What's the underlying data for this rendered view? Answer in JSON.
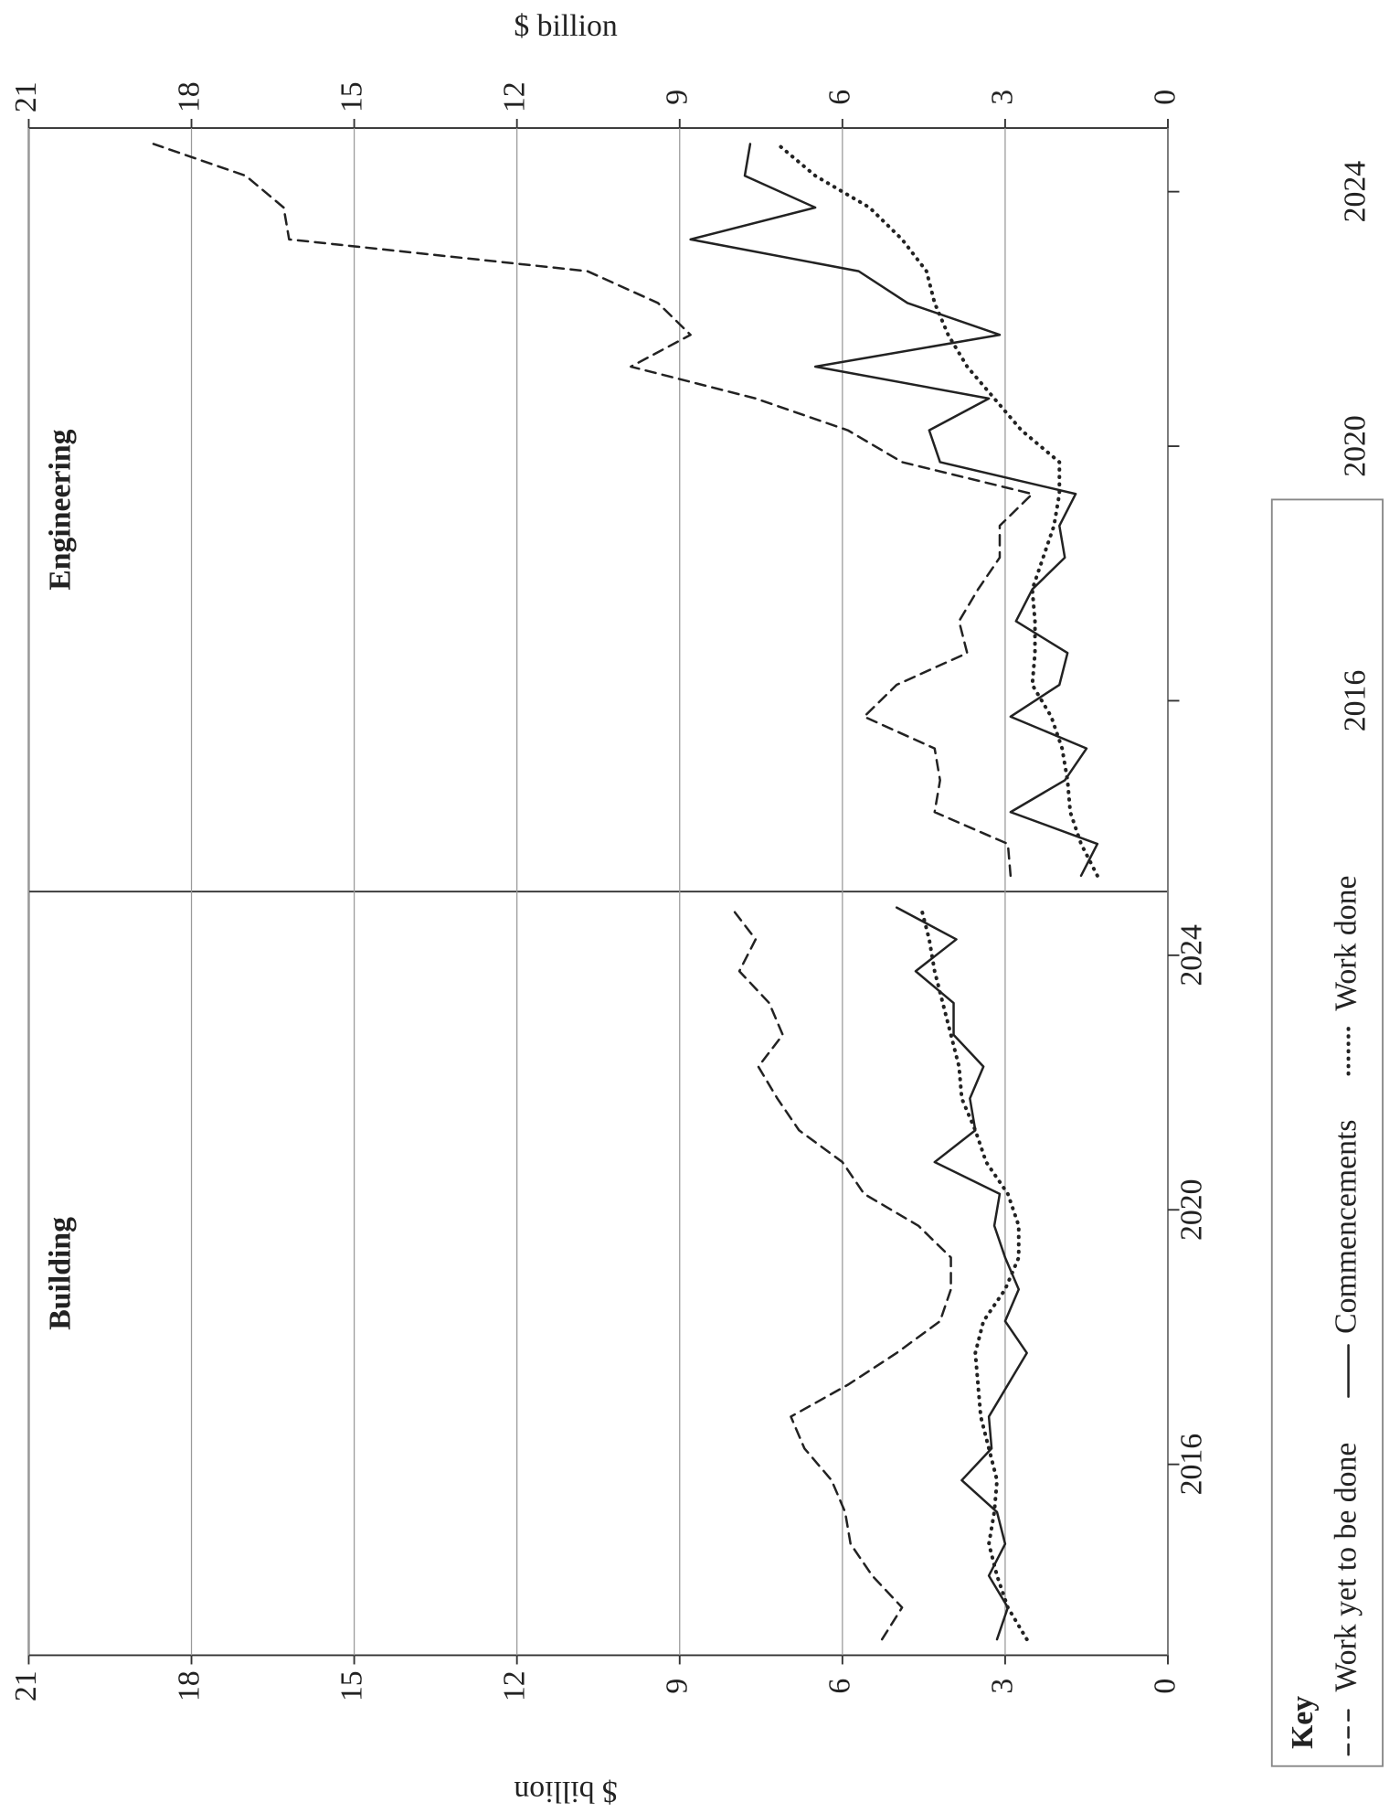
{
  "chart_data": [
    {
      "type": "line",
      "title": "Building",
      "ylabel": "$ billion",
      "legend_title": "Key",
      "x": [
        2013.25,
        2013.75,
        2014.25,
        2014.75,
        2015.25,
        2015.75,
        2016.25,
        2016.75,
        2017.25,
        2017.75,
        2018.25,
        2018.75,
        2019.25,
        2019.75,
        2020.25,
        2020.75,
        2021.25,
        2021.75,
        2022.25,
        2022.75,
        2023.25,
        2023.75,
        2024.25,
        2024.75
      ],
      "xlim": [
        2013,
        2025
      ],
      "xticks": [
        2016,
        2020,
        2024
      ],
      "ylim": [
        0,
        21
      ],
      "yticks": [
        0,
        3,
        6,
        9,
        12,
        15,
        18,
        21
      ],
      "grid": true,
      "series": [
        {
          "name": "Work yet to be done",
          "color": "#222",
          "dash": "dashed",
          "values": [
            5.27,
            4.9,
            5.45,
            5.85,
            5.95,
            6.2,
            6.7,
            6.95,
            5.9,
            5.0,
            4.2,
            4.0,
            4.0,
            4.6,
            5.6,
            6.0,
            6.8,
            7.2,
            7.55,
            7.1,
            7.35,
            7.9,
            7.6,
            8.05
          ]
        },
        {
          "name": "Commencements",
          "color": "#222",
          "dash": "solid",
          "values": [
            3.15,
            2.95,
            3.3,
            3.0,
            3.15,
            3.8,
            3.25,
            3.3,
            2.95,
            2.6,
            3.0,
            2.75,
            3.0,
            3.2,
            3.1,
            4.3,
            3.55,
            3.65,
            3.4,
            3.95,
            3.95,
            4.65,
            3.9,
            5.0
          ]
        },
        {
          "name": "Work done",
          "color": "#222",
          "dash": "dotted",
          "values": [
            2.6,
            2.95,
            3.15,
            3.3,
            3.2,
            3.15,
            3.3,
            3.45,
            3.5,
            3.55,
            3.4,
            3.0,
            2.75,
            2.75,
            2.95,
            3.35,
            3.55,
            3.8,
            3.85,
            4.0,
            4.15,
            4.3,
            4.4,
            4.55
          ]
        }
      ]
    },
    {
      "type": "line",
      "title": "Engineering",
      "ylabel": "$ billion",
      "x": [
        2013.25,
        2013.75,
        2014.25,
        2014.75,
        2015.25,
        2015.75,
        2016.25,
        2016.75,
        2017.25,
        2017.75,
        2018.25,
        2018.75,
        2019.25,
        2019.75,
        2020.25,
        2020.75,
        2021.25,
        2021.75,
        2022.25,
        2022.75,
        2023.25,
        2023.75,
        2024.25,
        2024.75
      ],
      "xlim": [
        2013,
        2025
      ],
      "xticks": [
        2016,
        2020,
        2024
      ],
      "ylim": [
        0,
        21
      ],
      "yticks": [
        0,
        3,
        6,
        9,
        12,
        15,
        18,
        21
      ],
      "grid": true,
      "series": [
        {
          "name": "Work yet to be done",
          "color": "#222",
          "dash": "dashed",
          "values": [
            2.9,
            2.95,
            4.3,
            4.2,
            4.3,
            5.6,
            5.0,
            3.7,
            3.85,
            3.5,
            3.1,
            3.1,
            2.5,
            4.9,
            5.9,
            7.6,
            9.9,
            8.8,
            9.4,
            10.7,
            16.2,
            16.3,
            17.0,
            18.7
          ]
        },
        {
          "name": "Commencements",
          "color": "#222",
          "dash": "solid",
          "values": [
            1.6,
            1.3,
            2.9,
            1.9,
            1.5,
            2.9,
            2.0,
            1.85,
            2.8,
            2.5,
            1.9,
            2.0,
            1.7,
            4.2,
            4.4,
            3.3,
            6.5,
            3.1,
            4.8,
            5.7,
            8.8,
            6.5,
            7.8,
            7.7
          ]
        },
        {
          "name": "Work done",
          "color": "#222",
          "dash": "dotted",
          "values": [
            1.3,
            1.6,
            1.8,
            1.85,
            1.95,
            2.15,
            2.5,
            2.45,
            2.45,
            2.5,
            2.3,
            2.1,
            2.0,
            2.0,
            2.7,
            3.2,
            3.7,
            4.05,
            4.3,
            4.45,
            4.9,
            5.5,
            6.5,
            7.2
          ]
        }
      ]
    }
  ]
}
